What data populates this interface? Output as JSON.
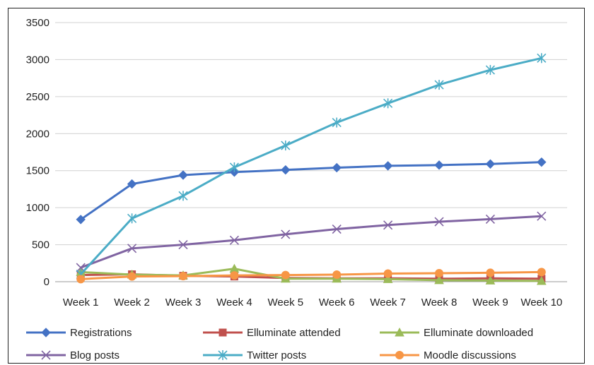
{
  "chart_data": {
    "type": "line",
    "title": "",
    "xlabel": "",
    "ylabel": "",
    "ylim": [
      0,
      3500
    ],
    "yticks": [
      0,
      500,
      1000,
      1500,
      2000,
      2500,
      3000,
      3500
    ],
    "grid": true,
    "legend_position": "bottom",
    "categories": [
      "Week 1",
      "Week 2",
      "Week 3",
      "Week 4",
      "Week 5",
      "Week 6",
      "Week 7",
      "Week 8",
      "Week 9",
      "Week 10"
    ],
    "series": [
      {
        "name": "Registrations",
        "color": "#4472c4",
        "marker": "diamond",
        "values": [
          840,
          1320,
          1440,
          1480,
          1510,
          1540,
          1565,
          1575,
          1590,
          1615
        ]
      },
      {
        "name": "Elluminate attended",
        "color": "#c0504d",
        "marker": "square",
        "values": [
          90,
          100,
          80,
          70,
          50,
          45,
          45,
          40,
          45,
          40
        ]
      },
      {
        "name": "Elluminate downloaded",
        "color": "#9bbb59",
        "marker": "triangle",
        "values": [
          130,
          95,
          85,
          175,
          40,
          40,
          35,
          20,
          15,
          10
        ]
      },
      {
        "name": "Blog posts",
        "color": "#8064a2",
        "marker": "x",
        "values": [
          190,
          450,
          500,
          560,
          640,
          710,
          765,
          810,
          845,
          885
        ]
      },
      {
        "name": "Twitter posts",
        "color": "#4bacc6",
        "marker": "star",
        "values": [
          100,
          855,
          1160,
          1545,
          1840,
          2150,
          2410,
          2660,
          2860,
          3020
        ]
      },
      {
        "name": "Moodle discussions",
        "color": "#f79646",
        "marker": "circle",
        "values": [
          35,
          70,
          75,
          85,
          90,
          95,
          110,
          115,
          120,
          130
        ]
      }
    ]
  }
}
